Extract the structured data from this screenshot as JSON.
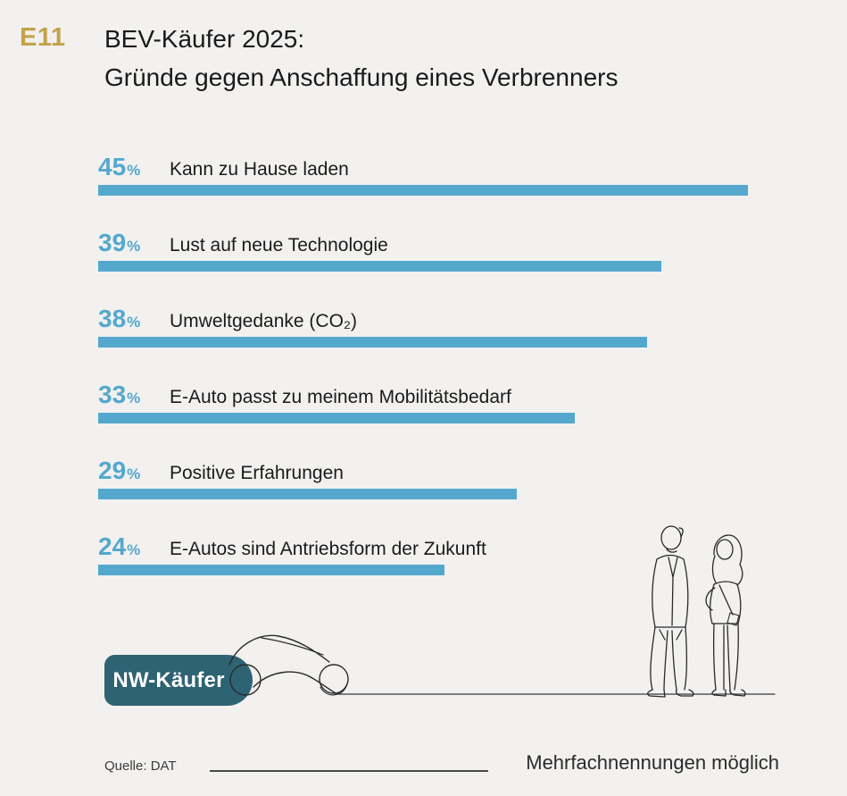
{
  "header": {
    "figure_id": "E11",
    "title_line1": "BEV-Käufer 2025:",
    "title_line2": "Gründe gegen Anschaffung eines Verbrenners"
  },
  "chart_data": {
    "type": "bar",
    "orientation": "horizontal",
    "title": "BEV-Käufer 2025: Gründe gegen Anschaffung eines Verbrenners",
    "unit": "%",
    "categories": [
      "Kann zu Hause laden",
      "Lust auf neue Technologie",
      "Umweltgedanke (CO₂)",
      "E-Auto passt zu meinem Mobilitätsbedarf",
      "Positive Erfahrungen",
      "E-Autos sind Antriebsform der Zukunft"
    ],
    "values": [
      45,
      39,
      38,
      33,
      29,
      24
    ],
    "value_labels": [
      "45%",
      "39%",
      "38%",
      "33%",
      "29%",
      "24%"
    ],
    "xlim": [
      0,
      45
    ],
    "grid": false,
    "bar_color": "#54A8CE",
    "value_label_color": "#54A8CE",
    "group_label": "NW-Käufer",
    "note": "Mehrfachnennungen möglich",
    "source": "Quelle: DAT"
  },
  "badge": {
    "label": "NW-Käufer",
    "color": "#2E6374"
  },
  "footer": {
    "source": "Quelle: DAT",
    "note": "Mehrfachnennungen möglich"
  },
  "colors": {
    "background": "#F2F1EF",
    "accent_gold": "#C3A24B",
    "bar_blue": "#54A8CE",
    "badge_teal": "#2E6374",
    "text_dark": "#1A1A1A"
  }
}
